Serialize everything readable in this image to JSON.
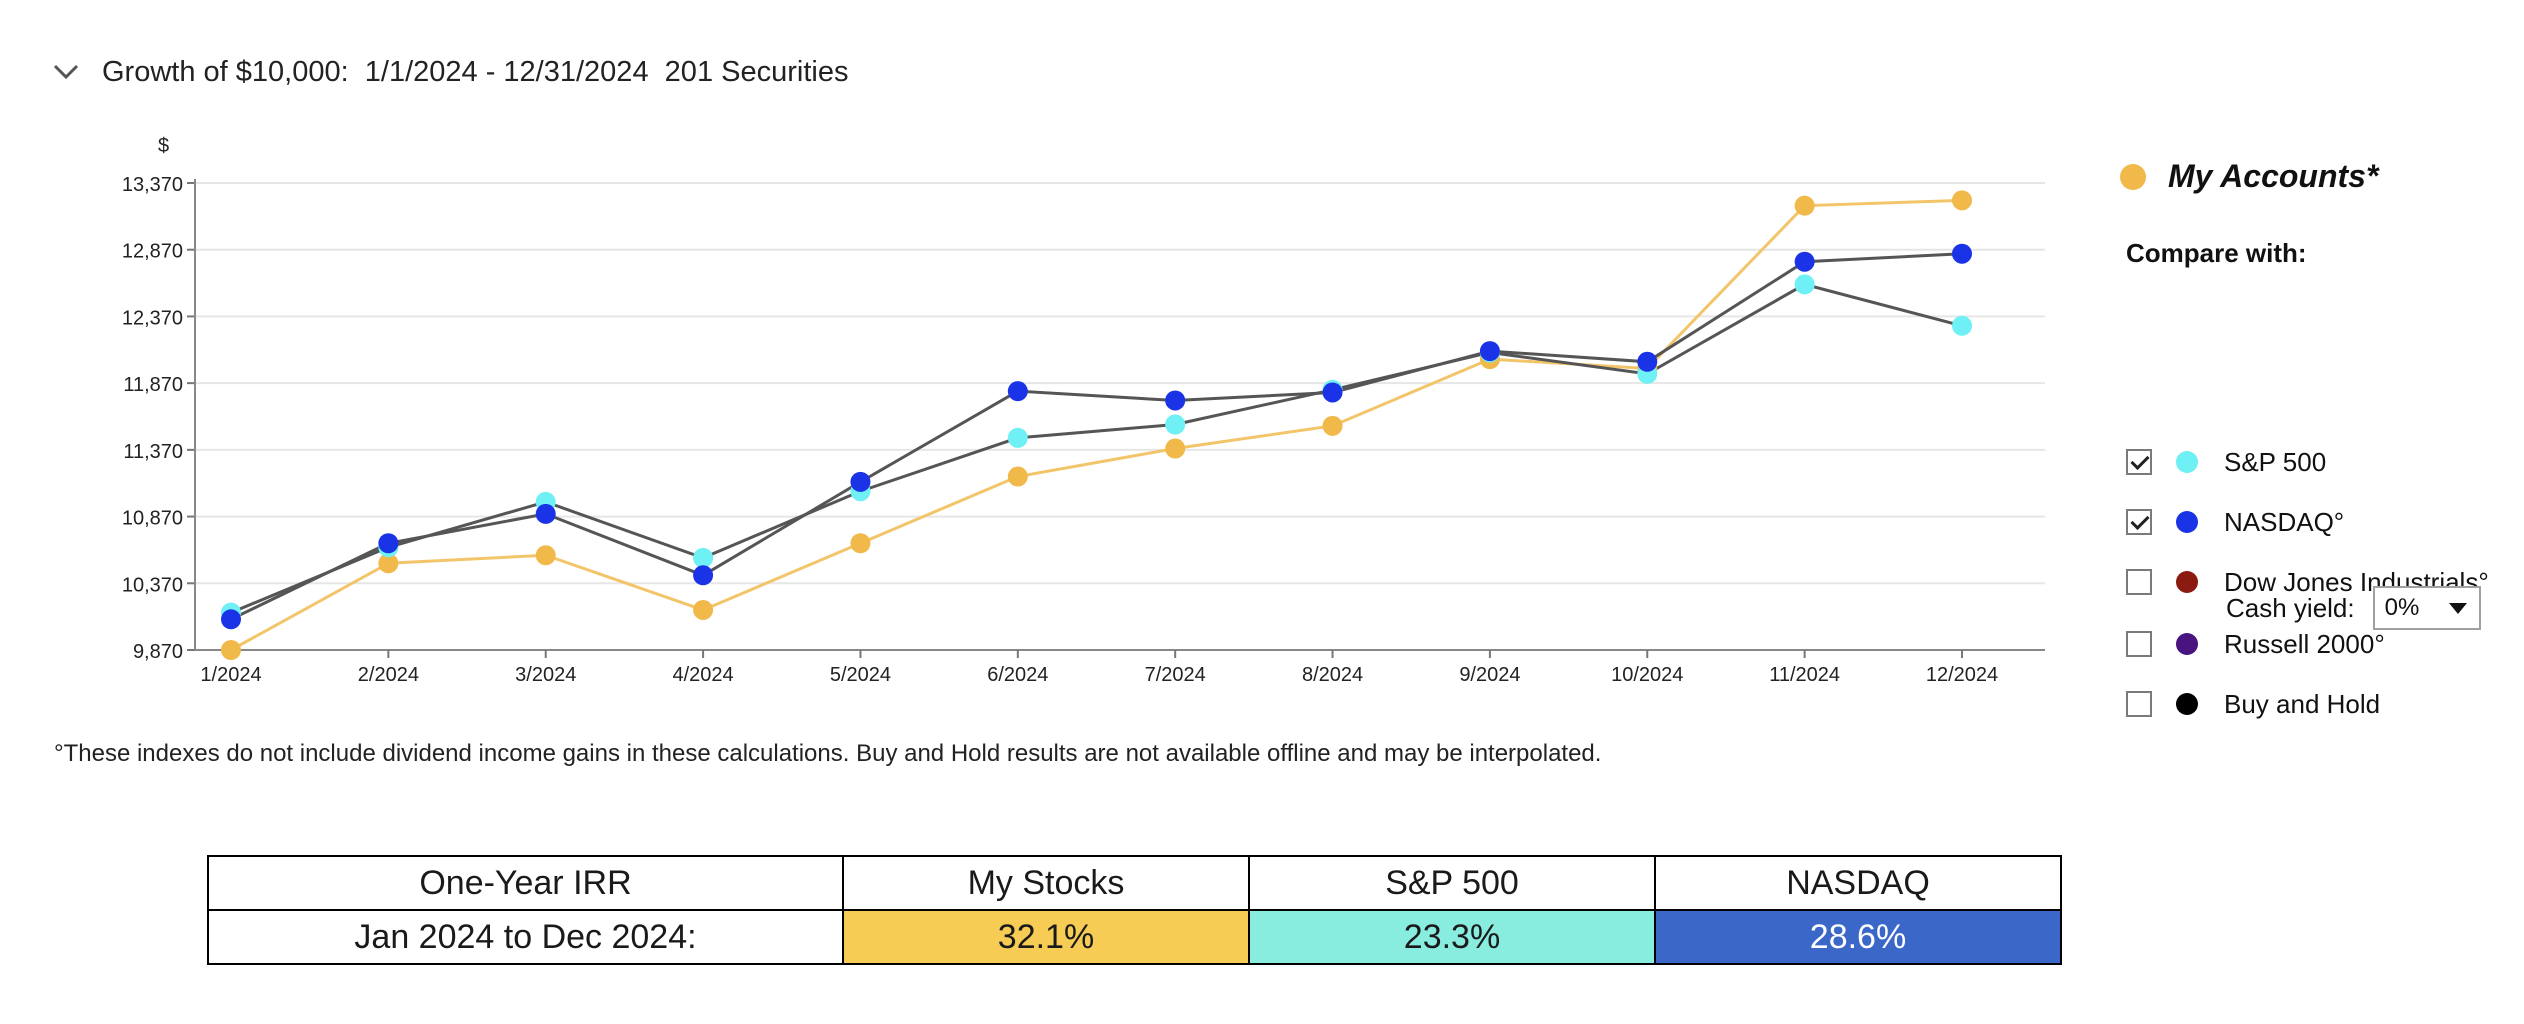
{
  "header": {
    "title": "Growth of $10,000:  1/1/2024 - 12/31/2024  201 Securities"
  },
  "chart_data": {
    "type": "line",
    "title": "",
    "xlabel": "",
    "ylabel": "$",
    "categories": [
      "1/2024",
      "2/2024",
      "3/2024",
      "4/2024",
      "5/2024",
      "6/2024",
      "7/2024",
      "8/2024",
      "9/2024",
      "10/2024",
      "11/2024",
      "12/2024"
    ],
    "yticks": [
      "9,870",
      "10,370",
      "10,870",
      "11,370",
      "11,870",
      "12,370",
      "12,870",
      "13,370"
    ],
    "ylim": [
      9870,
      13370
    ],
    "grid": true,
    "series": [
      {
        "name": "My Accounts*",
        "color": "#f0b94a",
        "line_color": "#f3c56a",
        "values": [
          9870,
          10520,
          10580,
          10170,
          10670,
          11170,
          11380,
          11550,
          12050,
          11980,
          13200,
          13240
        ]
      },
      {
        "name": "S&P 500",
        "color": "#6ef0f4",
        "line_color": "#555555",
        "values": [
          10150,
          10640,
          10980,
          10560,
          11060,
          11460,
          11560,
          11820,
          12100,
          11940,
          12610,
          12300
        ]
      },
      {
        "name": "NASDAQ°",
        "color": "#1a33e6",
        "line_color": "#555555",
        "values": [
          10100,
          10670,
          10890,
          10430,
          11130,
          11810,
          11740,
          11800,
          12110,
          12030,
          12780,
          12840
        ]
      }
    ]
  },
  "footnote": "°These indexes do not include dividend income gains in these calculations. Buy and Hold results are not available offline and may be interpolated.",
  "legend": {
    "primary": {
      "label": "My Accounts*",
      "color": "#f0b94a"
    },
    "compare_label": "Compare with:",
    "items": [
      {
        "label": "S&P 500",
        "color": "#6ef0f4",
        "checked": true
      },
      {
        "label": "NASDAQ°",
        "color": "#1a33e6",
        "checked": true
      },
      {
        "label": "Dow Jones Industrials°",
        "color": "#8b1a10",
        "checked": false
      },
      {
        "label": "Russell 2000°",
        "color": "#4a1480",
        "checked": false
      },
      {
        "label": "Buy and Hold",
        "color": "#000000",
        "checked": false
      }
    ],
    "cash_yield_label": "Cash yield:",
    "cash_yield_value": "0%"
  },
  "irr_table": {
    "headers": [
      "One-Year IRR",
      "My Stocks",
      "S&P 500",
      "NASDAQ"
    ],
    "row_label": "Jan 2024 to Dec 2024:",
    "values": [
      "32.1%",
      "23.3%",
      "28.6%"
    ],
    "colors": [
      "#f6cc55",
      "#88ecdf",
      "#3a67c8"
    ]
  }
}
